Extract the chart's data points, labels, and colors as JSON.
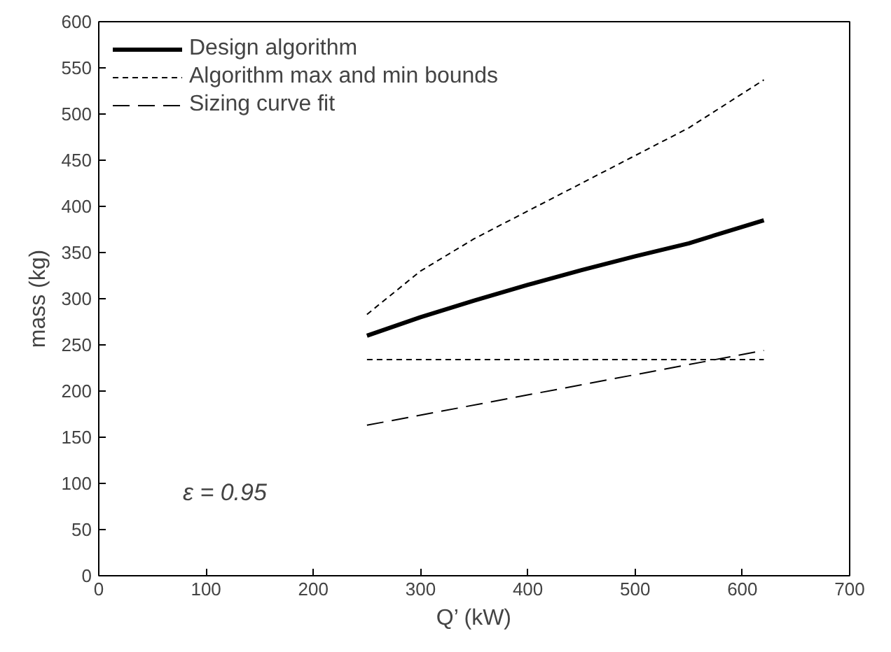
{
  "chart_data": {
    "type": "line",
    "xlabel": "Q’ (kW)",
    "ylabel": "mass (kg)",
    "xlim": [
      0,
      700
    ],
    "xticks": [
      0,
      100,
      200,
      300,
      400,
      500,
      600,
      700
    ],
    "ylim": [
      0,
      600
    ],
    "yticks": [
      0,
      50,
      100,
      150,
      200,
      250,
      300,
      350,
      400,
      450,
      500,
      550,
      600
    ],
    "grid": false,
    "legend": "top left",
    "series": [
      {
        "name": "Design algorithm",
        "color": "#000000",
        "line_style": "solid",
        "x": [
          250,
          300,
          350,
          400,
          450,
          500,
          550,
          620
        ],
        "values": [
          260,
          280,
          298,
          315,
          331,
          346,
          360,
          385
        ]
      },
      {
        "name": "Algorithm max and min bounds",
        "color": "#000000",
        "line_style": "dotted",
        "x": [
          250,
          300,
          350,
          400,
          450,
          500,
          550,
          620
        ],
        "values": [
          283,
          330,
          365,
          395,
          425,
          455,
          485,
          537
        ]
      },
      {
        "color": "#000000",
        "line_style": "dotted",
        "x": [
          250,
          620
        ],
        "values": [
          234,
          234
        ]
      },
      {
        "name": "Sizing curve fit",
        "color": "#000000",
        "line_style": "dashed",
        "x": [
          250,
          620
        ],
        "values": [
          163,
          244
        ]
      }
    ],
    "annotations": [
      "ε = 0.95"
    ]
  }
}
